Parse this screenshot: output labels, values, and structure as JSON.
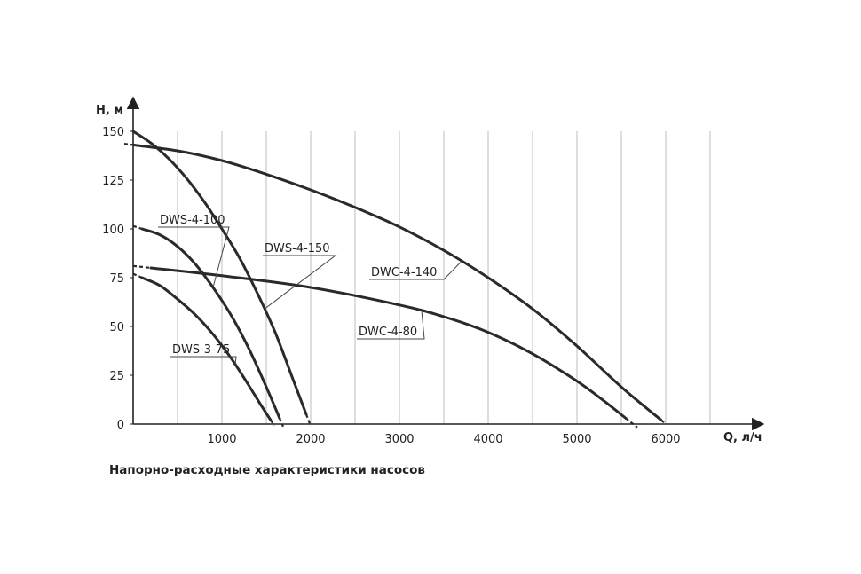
{
  "caption": "Напорно-расходные характеристики насосов",
  "chart_data": {
    "type": "line",
    "xlabel": "Q, л/ч",
    "ylabel": "Н, м",
    "xlim": [
      0,
      7000
    ],
    "ylim": [
      0,
      160
    ],
    "x_ticks": [
      1000,
      2000,
      3000,
      4000,
      5000,
      6000
    ],
    "y_ticks": [
      0,
      25,
      50,
      75,
      100,
      125,
      150
    ],
    "x_grid_step": 500,
    "grid": "vertical",
    "line_color": "#2a2a2a",
    "grid_color": "#bdbdbd",
    "series": [
      {
        "name": "DWS-4-150",
        "x": [
          0,
          200,
          400,
          600,
          800,
          1000,
          1200,
          1400,
          1600,
          1800,
          1950
        ],
        "y": [
          150,
          144,
          136,
          126,
          114,
          100,
          85,
          67,
          47,
          23,
          5
        ],
        "extrapolated_x": [
          [
            1950,
            2000
          ]
        ]
      },
      {
        "name": "DWC-4-140",
        "x": [
          0,
          500,
          1000,
          1500,
          2000,
          2500,
          3000,
          3500,
          4000,
          4500,
          5000,
          5500,
          5950
        ],
        "y": [
          143,
          140,
          135,
          128,
          120,
          111,
          101,
          89,
          75,
          59,
          40,
          19,
          2
        ],
        "extrapolated_x": [
          [
            -100,
            0
          ],
          [
            5950,
            6000
          ]
        ]
      },
      {
        "name": "DWS-4-100",
        "x": [
          100,
          300,
          500,
          700,
          900,
          1100,
          1300,
          1500,
          1650
        ],
        "y": [
          100,
          97,
          91,
          82,
          70,
          56,
          39,
          19,
          3
        ],
        "extrapolated_x": [
          [
            0,
            100
          ],
          [
            1650,
            1690
          ]
        ]
      },
      {
        "name": "DWC-4-80",
        "x": [
          200,
          1000,
          2000,
          3000,
          3500,
          4000,
          4500,
          5000,
          5300,
          5550
        ],
        "y": [
          80,
          76,
          70,
          61,
          55,
          47,
          36,
          22,
          12,
          3
        ],
        "extrapolated_x": [
          [
            0,
            200
          ],
          [
            5550,
            5680
          ]
        ]
      },
      {
        "name": "DWS-3-75",
        "x": [
          100,
          300,
          500,
          700,
          900,
          1100,
          1300,
          1450,
          1550
        ],
        "y": [
          75,
          71,
          64,
          56,
          46,
          34,
          20,
          9,
          2
        ],
        "extrapolated_x": [
          [
            0,
            100
          ],
          [
            1550,
            1590
          ]
        ]
      }
    ]
  }
}
